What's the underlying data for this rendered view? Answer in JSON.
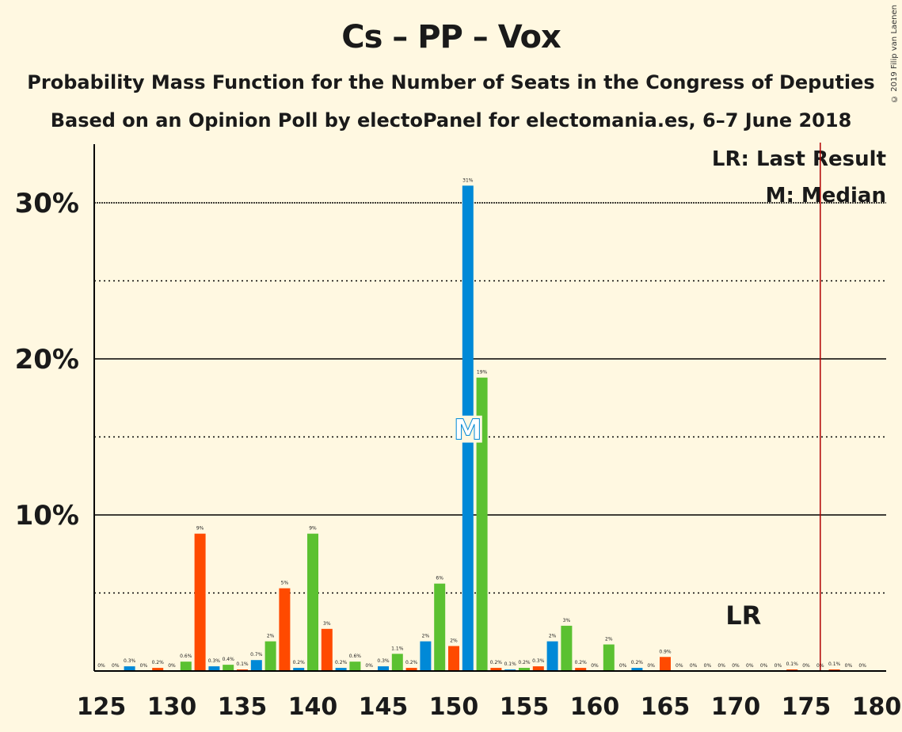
{
  "header": {
    "title": "Cs – PP – Vox",
    "subtitle": "Probability Mass Function for the Number of Seats in the Congress of Deputies",
    "source": "Based on an Opinion Poll by electoPanel for electomania.es, 6–7 June 2018",
    "copyright": "© 2019 Filip van Laenen"
  },
  "legend": {
    "lr": "LR: Last Result",
    "m": "M: Median"
  },
  "colors": {
    "background": "#FFF8E1",
    "blue": "#0089D7",
    "green": "#5BC131",
    "orange": "#FF4A00",
    "last_result_line": "#B00000"
  },
  "chart_data": {
    "type": "bar",
    "x": [
      125,
      126,
      127,
      128,
      129,
      130,
      131,
      132,
      133,
      134,
      135,
      136,
      137,
      138,
      139,
      140,
      141,
      142,
      143,
      144,
      145,
      146,
      147,
      148,
      149,
      150,
      151,
      152,
      153,
      154,
      155,
      156,
      157,
      158,
      159,
      160,
      161,
      162,
      163,
      164,
      165,
      166,
      167,
      168,
      169,
      170,
      171,
      172,
      173,
      174,
      175,
      176,
      177,
      178,
      179
    ],
    "values": [
      0,
      0,
      0.3,
      0,
      0.2,
      0,
      0.6,
      8.8,
      0.3,
      0.4,
      0.1,
      0.7,
      1.9,
      5.3,
      0.2,
      8.8,
      2.7,
      0.2,
      0.6,
      0,
      0.3,
      1.1,
      0.2,
      1.9,
      5.6,
      1.6,
      31.1,
      18.8,
      0.2,
      0.1,
      0.2,
      0.3,
      1.9,
      2.9,
      0.2,
      0,
      1.7,
      0,
      0.2,
      0,
      0.9,
      0,
      0,
      0,
      0,
      0,
      0,
      0,
      0,
      0.1,
      0,
      0,
      0.1,
      0,
      0
    ],
    "labels": [
      "0%",
      "0%",
      "0.3%",
      "0%",
      "0.2%",
      "0%",
      "0.6%",
      "9%",
      "0.3%",
      "0.4%",
      "0.1%",
      "0.7%",
      "2%",
      "5%",
      "0.2%",
      "9%",
      "3%",
      "0.2%",
      "0.6%",
      "0%",
      "0.3%",
      "1.1%",
      "0.2%",
      "2%",
      "6%",
      "2%",
      "31%",
      "19%",
      "0.2%",
      "0.1%",
      "0.2%",
      "0.3%",
      "2%",
      "3%",
      "0.2%",
      "0%",
      "2%",
      "0%",
      "0.2%",
      "0%",
      "0.9%",
      "0%",
      "0%",
      "0%",
      "0%",
      "0%",
      "0%",
      "0%",
      "0%",
      "0.1%",
      "0%",
      "0%",
      "0.1%",
      "0%",
      "0%"
    ],
    "bar_colors": [
      "blue",
      "green",
      "blue",
      "green",
      "orange",
      "green",
      "green",
      "orange",
      "blue",
      "green",
      "orange",
      "blue",
      "green",
      "orange",
      "blue",
      "green",
      "orange",
      "blue",
      "green",
      "orange",
      "blue",
      "green",
      "orange",
      "blue",
      "green",
      "orange",
      "blue",
      "green",
      "orange",
      "blue",
      "green",
      "orange",
      "blue",
      "green",
      "orange",
      "blue",
      "green",
      "orange",
      "blue",
      "green",
      "orange",
      "blue",
      "green",
      "orange",
      "blue",
      "green",
      "orange",
      "blue",
      "green",
      "orange",
      "blue",
      "green",
      "orange",
      "blue",
      "green"
    ],
    "xticks": [
      125,
      130,
      135,
      140,
      145,
      150,
      155,
      160,
      165,
      170,
      175,
      180
    ],
    "xtick_labels": [
      "125",
      "130",
      "135",
      "140",
      "145",
      "150",
      "155",
      "160",
      "165",
      "170",
      "175",
      "180"
    ],
    "yticks_major": [
      10,
      20,
      30
    ],
    "ytick_labels": [
      "10%",
      "20%",
      "30%"
    ],
    "yticks_minor": [
      5,
      15,
      25
    ],
    "xlim": [
      124.5,
      180
    ],
    "ylim": [
      0,
      34
    ],
    "median": {
      "x": 151,
      "label": "M",
      "y": 15.5
    },
    "last_result": {
      "x": 176,
      "label": "LR",
      "label_x": 169
    }
  }
}
